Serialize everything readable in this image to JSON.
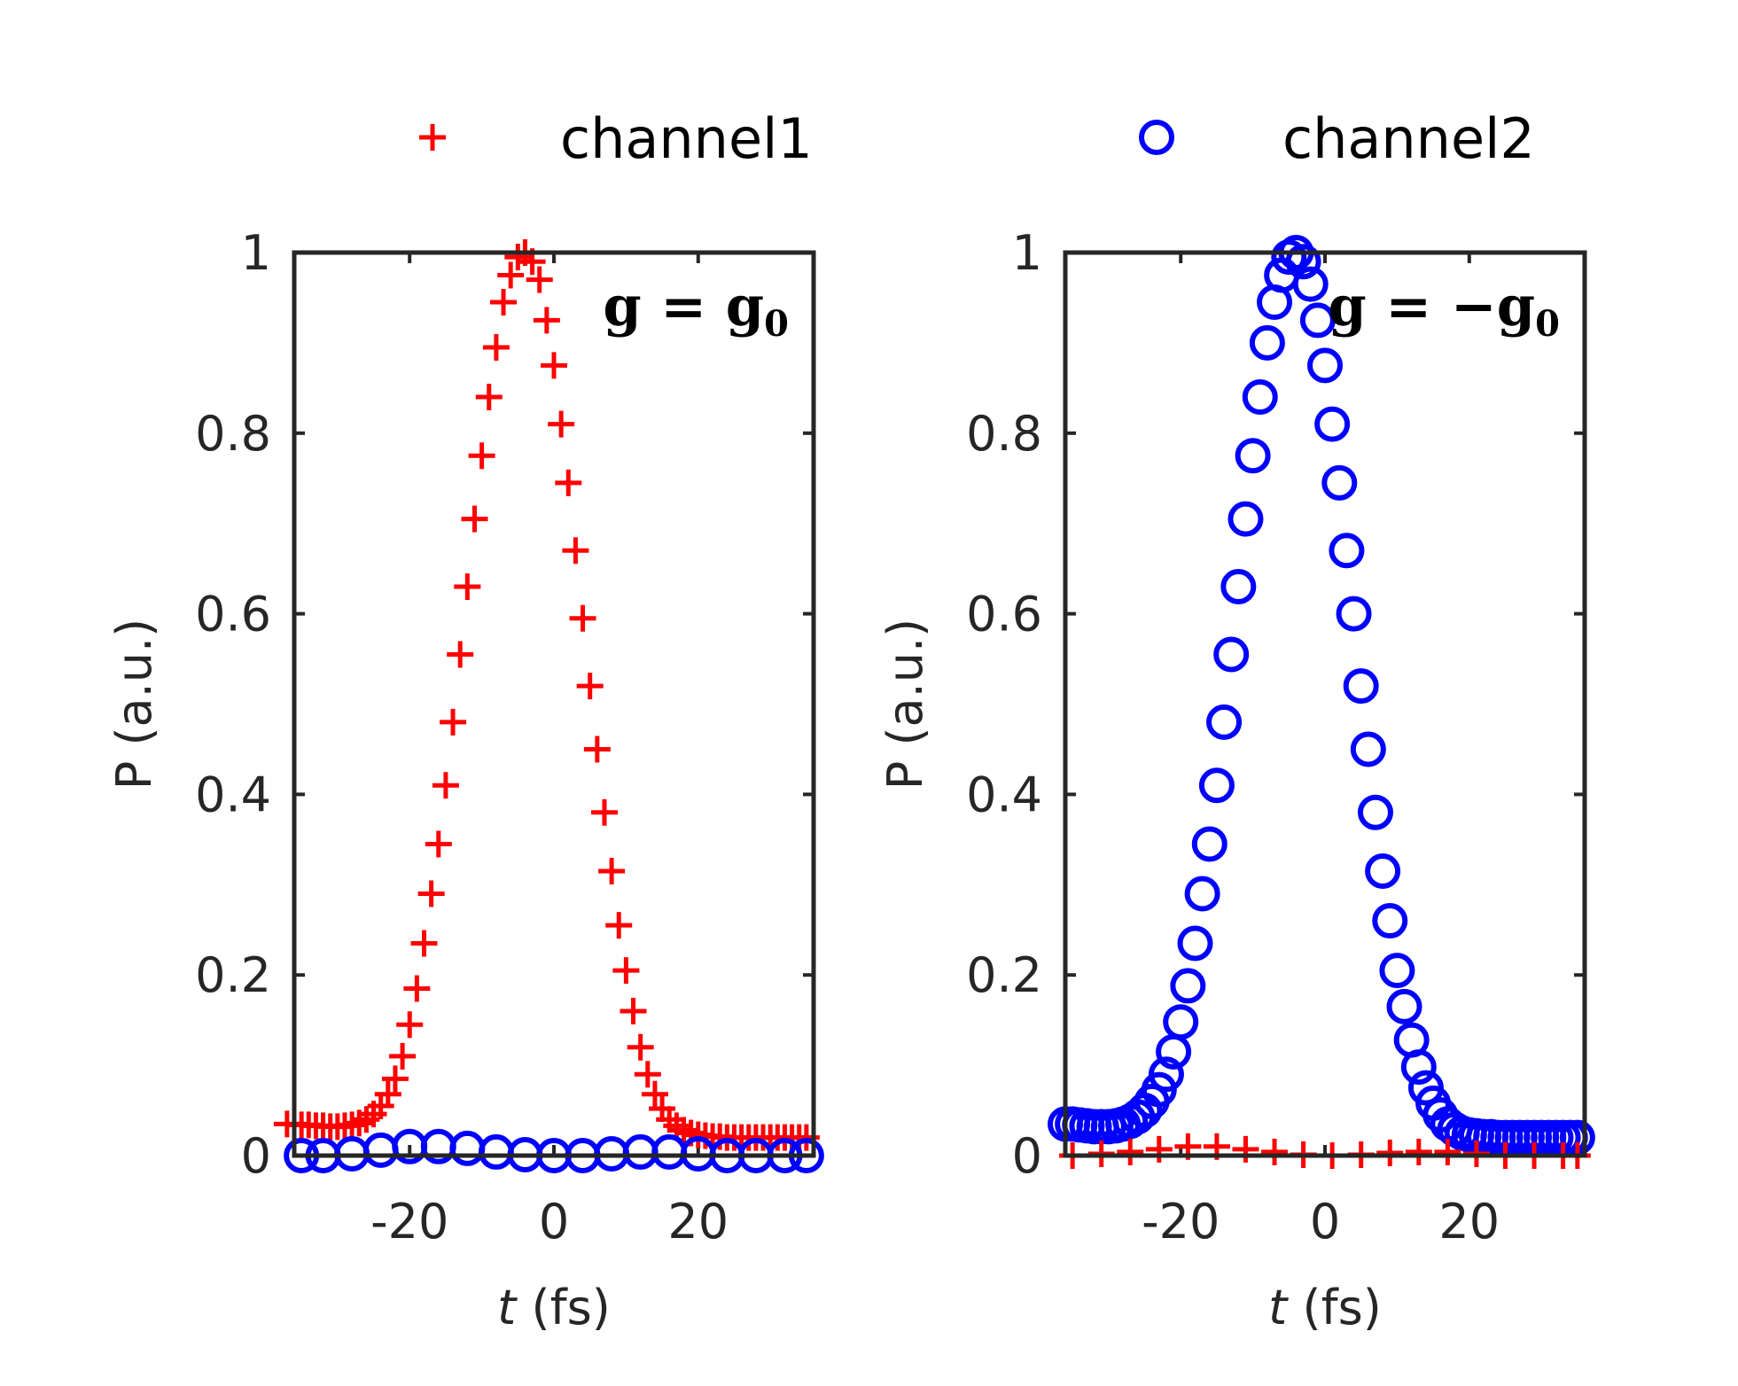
{
  "legend": {
    "entries": [
      {
        "label": "channel1",
        "marker": "plus-marker",
        "color": "#ff0000"
      },
      {
        "label": "channel2",
        "marker": "circle-marker",
        "color": "#0000ff"
      }
    ]
  },
  "chart_data": [
    {
      "type": "scatter",
      "panel": "left",
      "annotation": {
        "main": "g = g",
        "sub": "0"
      },
      "xlabel": {
        "var": "t",
        "unit": " (fs)"
      },
      "ylabel": "P (a.u.)",
      "xlim": [
        -36,
        36
      ],
      "ylim": [
        0,
        1
      ],
      "xticks": [
        -20,
        0,
        20
      ],
      "yticks": [
        0,
        0.2,
        0.4,
        0.6,
        0.8,
        1
      ],
      "xtick_labels": [
        "-20",
        "0",
        "20"
      ],
      "ytick_labels": [
        "0",
        "0.2",
        "0.4",
        "0.6",
        "0.8",
        "1"
      ],
      "series": [
        {
          "name": "channel1",
          "marker": "plus",
          "color": "#ff0000",
          "points": [
            [
              -37,
              0.035
            ],
            [
              -36,
              0.035
            ],
            [
              -35,
              0.034
            ],
            [
              -34,
              0.034
            ],
            [
              -33,
              0.033
            ],
            [
              -32,
              0.033
            ],
            [
              -31,
              0.032
            ],
            [
              -30,
              0.032
            ],
            [
              -29,
              0.033
            ],
            [
              -28,
              0.034
            ],
            [
              -27,
              0.036
            ],
            [
              -26,
              0.04
            ],
            [
              -25,
              0.046
            ],
            [
              -24,
              0.055
            ],
            [
              -23,
              0.068
            ],
            [
              -22,
              0.085
            ],
            [
              -21,
              0.11
            ],
            [
              -20,
              0.145
            ],
            [
              -19,
              0.185
            ],
            [
              -18,
              0.235
            ],
            [
              -17,
              0.29
            ],
            [
              -16,
              0.345
            ],
            [
              -15,
              0.41
            ],
            [
              -14,
              0.48
            ],
            [
              -13,
              0.555
            ],
            [
              -12,
              0.63
            ],
            [
              -11,
              0.705
            ],
            [
              -10,
              0.775
            ],
            [
              -9,
              0.84
            ],
            [
              -8,
              0.895
            ],
            [
              -7,
              0.945
            ],
            [
              -6,
              0.975
            ],
            [
              -5,
              0.995
            ],
            [
              -4,
              1.0
            ],
            [
              -3,
              0.99
            ],
            [
              -2,
              0.97
            ],
            [
              -1,
              0.925
            ],
            [
              0,
              0.875
            ],
            [
              1,
              0.81
            ],
            [
              2,
              0.745
            ],
            [
              3,
              0.67
            ],
            [
              4,
              0.595
            ],
            [
              5,
              0.52
            ],
            [
              6,
              0.45
            ],
            [
              7,
              0.38
            ],
            [
              8,
              0.315
            ],
            [
              9,
              0.255
            ],
            [
              10,
              0.205
            ],
            [
              11,
              0.16
            ],
            [
              12,
              0.12
            ],
            [
              13,
              0.09
            ],
            [
              14,
              0.068
            ],
            [
              15,
              0.052
            ],
            [
              16,
              0.04
            ],
            [
              17,
              0.033
            ],
            [
              18,
              0.028
            ],
            [
              19,
              0.025
            ],
            [
              20,
              0.023
            ],
            [
              21,
              0.022
            ],
            [
              22,
              0.021
            ],
            [
              23,
              0.021
            ],
            [
              24,
              0.02
            ],
            [
              25,
              0.02
            ],
            [
              26,
              0.02
            ],
            [
              27,
              0.02
            ],
            [
              28,
              0.02
            ],
            [
              29,
              0.02
            ],
            [
              30,
              0.02
            ],
            [
              31,
              0.02
            ],
            [
              32,
              0.02
            ],
            [
              33,
              0.02
            ],
            [
              34,
              0.02
            ],
            [
              35,
              0.02
            ]
          ]
        },
        {
          "name": "channel2",
          "marker": "circle",
          "color": "#0000ff",
          "points": [
            [
              -35,
              0.0
            ],
            [
              -32,
              0.0
            ],
            [
              -28,
              0.002
            ],
            [
              -24,
              0.006
            ],
            [
              -20,
              0.01
            ],
            [
              -16,
              0.01
            ],
            [
              -12,
              0.008
            ],
            [
              -8,
              0.004
            ],
            [
              -4,
              0.001
            ],
            [
              0,
              0.0
            ],
            [
              4,
              0.0
            ],
            [
              8,
              0.002
            ],
            [
              12,
              0.004
            ],
            [
              16,
              0.004
            ],
            [
              20,
              0.002
            ],
            [
              24,
              0.0
            ],
            [
              28,
              0.0
            ],
            [
              32,
              0.0
            ],
            [
              35,
              0.0
            ]
          ]
        }
      ]
    },
    {
      "type": "scatter",
      "panel": "right",
      "annotation": {
        "main": "g = −g",
        "sub": "0"
      },
      "xlabel": {
        "var": "t",
        "unit": " (fs)"
      },
      "ylabel": "P (a.u.)",
      "xlim": [
        -36,
        36
      ],
      "ylim": [
        0,
        1
      ],
      "xticks": [
        -20,
        0,
        20
      ],
      "yticks": [
        0,
        0.2,
        0.4,
        0.6,
        0.8,
        1
      ],
      "xtick_labels": [
        "-20",
        "0",
        "20"
      ],
      "ytick_labels": [
        "0",
        "0.2",
        "0.4",
        "0.6",
        "0.8",
        "1"
      ],
      "series": [
        {
          "name": "channel2",
          "marker": "circle",
          "color": "#0000ff",
          "points": [
            [
              -36,
              0.035
            ],
            [
              -35,
              0.035
            ],
            [
              -34,
              0.034
            ],
            [
              -33,
              0.033
            ],
            [
              -32,
              0.032
            ],
            [
              -31,
              0.032
            ],
            [
              -30,
              0.032
            ],
            [
              -29,
              0.033
            ],
            [
              -28,
              0.035
            ],
            [
              -27,
              0.038
            ],
            [
              -26,
              0.043
            ],
            [
              -25,
              0.05
            ],
            [
              -24,
              0.06
            ],
            [
              -23,
              0.073
            ],
            [
              -22,
              0.09
            ],
            [
              -21,
              0.115
            ],
            [
              -20,
              0.148
            ],
            [
              -19,
              0.188
            ],
            [
              -18,
              0.235
            ],
            [
              -17,
              0.29
            ],
            [
              -16,
              0.345
            ],
            [
              -15,
              0.41
            ],
            [
              -14,
              0.48
            ],
            [
              -13,
              0.555
            ],
            [
              -12,
              0.63
            ],
            [
              -11,
              0.705
            ],
            [
              -10,
              0.775
            ],
            [
              -9,
              0.84
            ],
            [
              -8,
              0.9
            ],
            [
              -7,
              0.945
            ],
            [
              -6,
              0.975
            ],
            [
              -5,
              0.995
            ],
            [
              -4,
              1.0
            ],
            [
              -3,
              0.99
            ],
            [
              -2,
              0.965
            ],
            [
              -1,
              0.925
            ],
            [
              0,
              0.875
            ],
            [
              1,
              0.81
            ],
            [
              2,
              0.745
            ],
            [
              3,
              0.67
            ],
            [
              4,
              0.6
            ],
            [
              5,
              0.52
            ],
            [
              6,
              0.45
            ],
            [
              7,
              0.38
            ],
            [
              8,
              0.315
            ],
            [
              9,
              0.26
            ],
            [
              10,
              0.205
            ],
            [
              11,
              0.165
            ],
            [
              12,
              0.128
            ],
            [
              13,
              0.098
            ],
            [
              14,
              0.075
            ],
            [
              15,
              0.058
            ],
            [
              16,
              0.045
            ],
            [
              17,
              0.035
            ],
            [
              18,
              0.029
            ],
            [
              19,
              0.025
            ],
            [
              20,
              0.023
            ],
            [
              21,
              0.022
            ],
            [
              22,
              0.021
            ],
            [
              23,
              0.021
            ],
            [
              24,
              0.02
            ],
            [
              25,
              0.02
            ],
            [
              26,
              0.02
            ],
            [
              27,
              0.02
            ],
            [
              28,
              0.02
            ],
            [
              29,
              0.02
            ],
            [
              30,
              0.02
            ],
            [
              31,
              0.02
            ],
            [
              32,
              0.02
            ],
            [
              33,
              0.02
            ],
            [
              34,
              0.02
            ],
            [
              35,
              0.02
            ]
          ]
        },
        {
          "name": "channel1",
          "marker": "plus",
          "color": "#ff0000",
          "points": [
            [
              -35,
              0.0
            ],
            [
              -31,
              0.002
            ],
            [
              -27,
              0.004
            ],
            [
              -23,
              0.007
            ],
            [
              -19,
              0.01
            ],
            [
              -15,
              0.01
            ],
            [
              -11,
              0.007
            ],
            [
              -7,
              0.004
            ],
            [
              -3,
              0.001
            ],
            [
              1,
              0.0
            ],
            [
              5,
              0.001
            ],
            [
              9,
              0.003
            ],
            [
              13,
              0.004
            ],
            [
              17,
              0.004
            ],
            [
              21,
              0.002
            ],
            [
              25,
              0.0
            ],
            [
              29,
              0.0
            ],
            [
              33,
              0.0
            ],
            [
              35,
              0.0
            ]
          ]
        }
      ]
    }
  ]
}
